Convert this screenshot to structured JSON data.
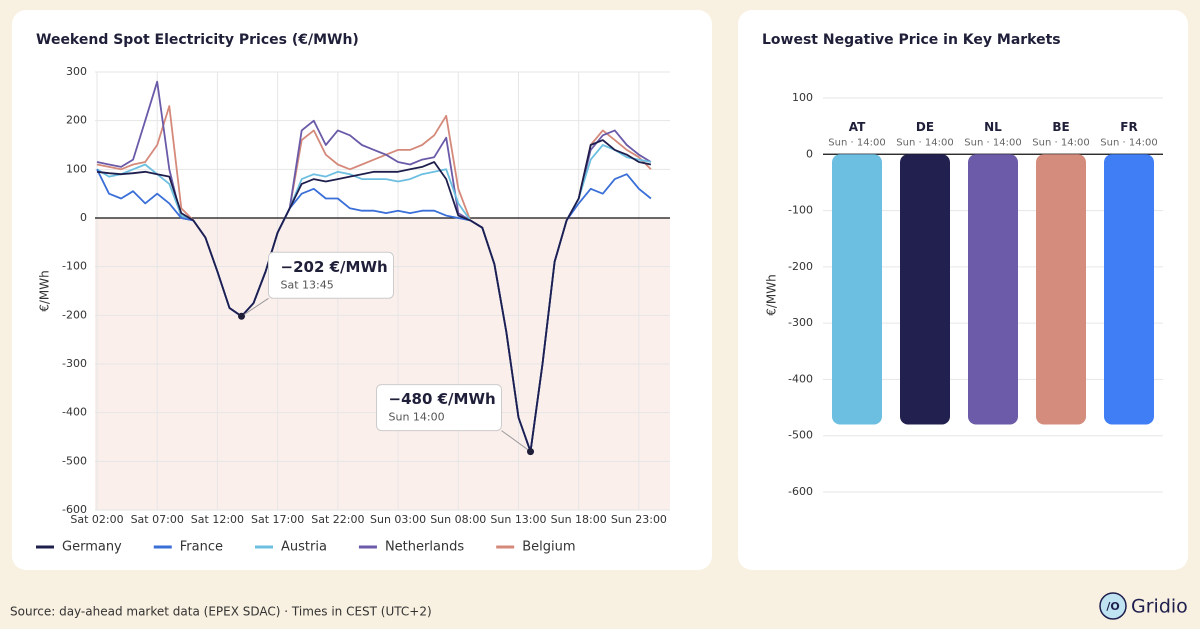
{
  "chart_data": [
    {
      "type": "line",
      "title": "Weekend Spot Electricity Prices (€/MWh)",
      "ylabel": "€/MWh",
      "categories": [
        "Sat 02:00",
        null,
        null,
        null,
        null,
        "Sat 07:00",
        null,
        null,
        null,
        null,
        "Sat 12:00",
        null,
        null,
        null,
        null,
        "Sat 17:00",
        null,
        null,
        null,
        null,
        "Sat 22:00",
        null,
        null,
        null,
        null,
        "Sun 03:00",
        null,
        null,
        null,
        null,
        "Sun 08:00",
        null,
        null,
        null,
        null,
        "Sun 13:00",
        null,
        null,
        null,
        null,
        "Sun 18:00",
        null,
        null,
        null,
        null,
        "Sun 23:00",
        null
      ],
      "series": [
        {
          "name": "Germany",
          "color": "#1f1f4e",
          "values": [
            95,
            92,
            90,
            92,
            95,
            90,
            85,
            10,
            -5,
            -40,
            -110,
            -185,
            -202,
            -175,
            -110,
            -30,
            20,
            70,
            80,
            75,
            80,
            85,
            90,
            95,
            95,
            95,
            100,
            105,
            115,
            80,
            5,
            -5,
            -20,
            -95,
            -235,
            -410,
            -480,
            -300,
            -90,
            -5,
            40,
            150,
            160,
            140,
            130,
            115,
            110
          ]
        },
        {
          "name": "France",
          "color": "#3a6fd8",
          "values": [
            100,
            50,
            40,
            55,
            30,
            50,
            30,
            0,
            -5,
            -40,
            -110,
            -185,
            -202,
            -175,
            -110,
            -30,
            20,
            50,
            60,
            40,
            40,
            20,
            15,
            15,
            10,
            15,
            10,
            15,
            15,
            5,
            0,
            -5,
            -20,
            -95,
            -235,
            -410,
            -480,
            -300,
            -90,
            -5,
            30,
            60,
            50,
            80,
            90,
            60,
            40
          ]
        },
        {
          "name": "Austria",
          "color": "#6cbfe0",
          "values": [
            100,
            85,
            90,
            100,
            110,
            90,
            70,
            5,
            -5,
            -40,
            -110,
            -185,
            -202,
            -175,
            -110,
            -30,
            20,
            80,
            90,
            85,
            95,
            90,
            80,
            80,
            80,
            75,
            80,
            90,
            95,
            100,
            30,
            -5,
            -20,
            -95,
            -235,
            -410,
            -480,
            -300,
            -90,
            -5,
            40,
            120,
            150,
            140,
            125,
            120,
            115
          ]
        },
        {
          "name": "Netherlands",
          "color": "#6a5aa8",
          "values": [
            115,
            110,
            105,
            120,
            200,
            280,
            100,
            0,
            -5,
            -40,
            -110,
            -185,
            -202,
            -175,
            -110,
            -30,
            20,
            180,
            200,
            150,
            180,
            170,
            150,
            140,
            130,
            115,
            110,
            120,
            125,
            165,
            10,
            -5,
            -20,
            -95,
            -235,
            -410,
            -480,
            -300,
            -90,
            -5,
            40,
            140,
            170,
            180,
            150,
            130,
            115
          ]
        },
        {
          "name": "Belgium",
          "color": "#d4897a",
          "values": [
            110,
            105,
            100,
            110,
            115,
            150,
            230,
            20,
            -5,
            -40,
            -110,
            -185,
            -202,
            -175,
            -110,
            -30,
            20,
            160,
            180,
            130,
            110,
            100,
            110,
            120,
            130,
            140,
            140,
            150,
            170,
            210,
            60,
            -5,
            -20,
            -95,
            -235,
            -410,
            -480,
            -300,
            -90,
            -5,
            40,
            150,
            180,
            160,
            140,
            125,
            100
          ]
        }
      ],
      "ylim": [
        -600,
        300
      ],
      "yticks": [
        -600,
        -500,
        -400,
        -300,
        -200,
        -100,
        0,
        100,
        200,
        300
      ],
      "grid": true,
      "annotations": [
        {
          "label": "−202 €/MWh",
          "sublabel": "Sat 13:45",
          "value": -202
        },
        {
          "label": "−480 €/MWh",
          "sublabel": "Sun 14:00",
          "value": -480
        }
      ]
    },
    {
      "type": "bar",
      "title": "Lowest Negative Price in Key Markets",
      "ylabel": "€/MWh",
      "categories": [
        "AT",
        "DE",
        "NL",
        "BE",
        "FR"
      ],
      "sublabels": [
        "Sun · 14:00",
        "Sun · 14:00",
        "Sun · 14:00",
        "Sun · 14:00",
        "Sun · 14:00"
      ],
      "values": [
        -480,
        -480,
        -480,
        -480,
        -480
      ],
      "colors": [
        "#6cbfe0",
        "#22204f",
        "#6b5ba8",
        "#d48c7d",
        "#3f7ef5"
      ],
      "ylim": [
        -600,
        100
      ],
      "yticks": [
        -600,
        -500,
        -400,
        -300,
        -200,
        -100,
        0,
        100
      ],
      "grid": true
    }
  ],
  "footer": {
    "source": "Source: day-ahead market data (EPEX SDAC) · Times in CEST (UTC+2)",
    "brand": "Gridio",
    "brand_icon": "/O"
  }
}
